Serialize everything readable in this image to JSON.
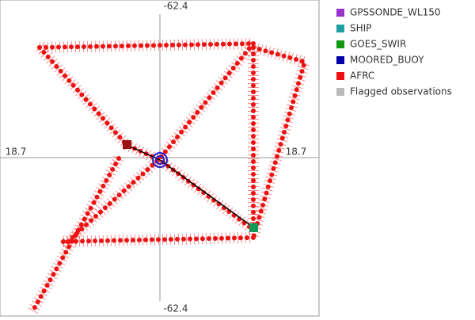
{
  "plot": {
    "top_label": "-62.4",
    "bottom_label": "-62.4",
    "left_label": "18.7",
    "right_label": "18.7"
  },
  "legend": [
    {
      "name": "GPSSONDE_WL150",
      "color": "#9933cc"
    },
    {
      "name": "SHIP",
      "color": "#20a0a0"
    },
    {
      "name": "GOES_SWIR",
      "color": "#119911"
    },
    {
      "name": "MOORED_BUOY",
      "color": "#0000aa"
    },
    {
      "name": "AFRC",
      "color": "#ee1111"
    },
    {
      "name": "Flagged observations",
      "color": "#bbbbbb"
    }
  ]
}
